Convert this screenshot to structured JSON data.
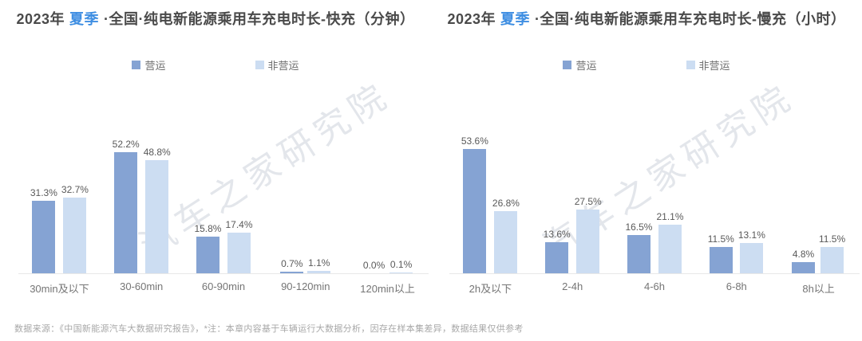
{
  "colors": {
    "operational": "#85a3d3",
    "non_operational": "#ccddf2",
    "title_accent": "#3e8ee2"
  },
  "watermark": {
    "text": "汽车之家研究院"
  },
  "footer": {
    "text": "数据来源：《中国新能源汽车大数据研究报告》，*注：本章内容基于车辆运行大数据分析，因存在样本集差异，数据结果仅供参考"
  },
  "chart_data": [
    {
      "type": "bar",
      "title_prefix": "2023年",
      "title_season": "夏季",
      "title_rest": "·全国·纯电新能源乘用车充电时长-快充（分钟）",
      "legend_position": "top",
      "grid": false,
      "ylim": [
        0,
        62
      ],
      "categories": [
        "30min及以下",
        "30-60min",
        "60-90min",
        "90-120min",
        "120min以上"
      ],
      "series": [
        {
          "name": "营运",
          "values": [
            31.3,
            52.2,
            15.8,
            0.7,
            0.0
          ],
          "labels": [
            "31.3%",
            "52.2%",
            "15.8%",
            "0.7%",
            "0.0%"
          ]
        },
        {
          "name": "非营运",
          "values": [
            32.7,
            48.8,
            17.4,
            1.1,
            0.1
          ],
          "labels": [
            "32.7%",
            "48.8%",
            "17.4%",
            "1.1%",
            "0.1%"
          ]
        }
      ]
    },
    {
      "type": "bar",
      "title_prefix": "2023年",
      "title_season": "夏季",
      "title_rest": "·全国·纯电新能源乘用车充电时长-慢充（小时）",
      "legend_position": "top",
      "grid": false,
      "ylim": [
        0,
        62
      ],
      "categories": [
        "2h及以下",
        "2-4h",
        "4-6h",
        "6-8h",
        "8h以上"
      ],
      "series": [
        {
          "name": "营运",
          "values": [
            53.6,
            13.6,
            16.5,
            11.5,
            4.8
          ],
          "labels": [
            "53.6%",
            "13.6%",
            "16.5%",
            "11.5%",
            "4.8%"
          ]
        },
        {
          "name": "非营运",
          "values": [
            26.8,
            27.5,
            21.1,
            13.1,
            11.5
          ],
          "labels": [
            "26.8%",
            "27.5%",
            "21.1%",
            "13.1%",
            "11.5%"
          ]
        }
      ]
    }
  ]
}
